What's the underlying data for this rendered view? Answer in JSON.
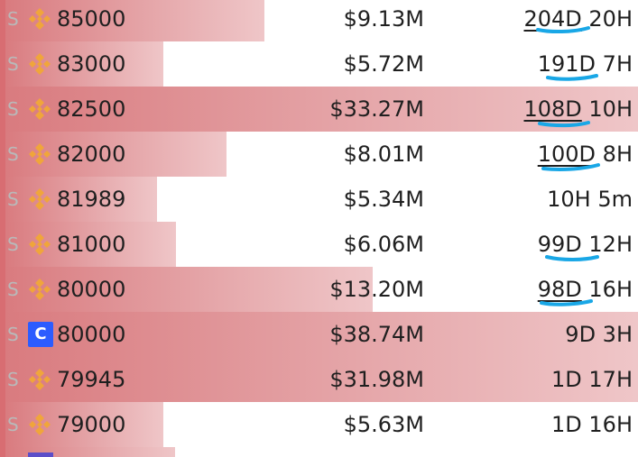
{
  "rows": [
    {
      "side": "S",
      "exchange_icon": "binance-icon",
      "price": "85000",
      "amount": "$9.13M",
      "time_days": "204D",
      "time_rest": " 20H",
      "underlined": true,
      "bar_fraction": 0.41
    },
    {
      "side": "S",
      "exchange_icon": "binance-icon",
      "price": "83000",
      "amount": "$5.72M",
      "time_days": "191D",
      "time_rest": " 7H",
      "underlined": false,
      "bar_fraction": 0.25
    },
    {
      "side": "S",
      "exchange_icon": "binance-icon",
      "price": "82500",
      "amount": "$33.27M",
      "time_days": "108D",
      "time_rest": " 10H",
      "underlined": true,
      "bar_fraction": 1.0
    },
    {
      "side": "S",
      "exchange_icon": "binance-icon",
      "price": "82000",
      "amount": "$8.01M",
      "time_days": "100D",
      "time_rest": " 8H",
      "underlined": true,
      "bar_fraction": 0.35
    },
    {
      "side": "S",
      "exchange_icon": "binance-icon",
      "price": "81989",
      "amount": "$5.34M",
      "time_days": "",
      "time_rest": "10H 5m",
      "underlined": false,
      "bar_fraction": 0.24
    },
    {
      "side": "S",
      "exchange_icon": "binance-icon",
      "price": "81000",
      "amount": "$6.06M",
      "time_days": "99D",
      "time_rest": " 12H",
      "underlined": false,
      "bar_fraction": 0.27
    },
    {
      "side": "S",
      "exchange_icon": "binance-icon",
      "price": "80000",
      "amount": "$13.20M",
      "time_days": "98D",
      "time_rest": " 16H",
      "underlined": true,
      "bar_fraction": 0.58
    },
    {
      "side": "S",
      "exchange_icon": "coinbase-icon",
      "exchange_letter": "C",
      "price": "80000",
      "amount": "$38.74M",
      "time_days": "9D",
      "time_rest": " 3H",
      "underlined": false,
      "bar_fraction": 1.0
    },
    {
      "side": "S",
      "exchange_icon": "binance-icon",
      "price": "79945",
      "amount": "$31.98M",
      "time_days": "1D",
      "time_rest": " 17H",
      "underlined": false,
      "bar_fraction": 1.0
    },
    {
      "side": "S",
      "exchange_icon": "binance-icon",
      "price": "79000",
      "amount": "$5.63M",
      "time_days": "1D",
      "time_rest": " 16H",
      "underlined": false,
      "bar_fraction": 0.25
    }
  ],
  "colors": {
    "bar": "#e6a9ac",
    "annotation": "#19a7e6",
    "binance": "#f0a53b",
    "coinbase": "#2c5cff"
  }
}
